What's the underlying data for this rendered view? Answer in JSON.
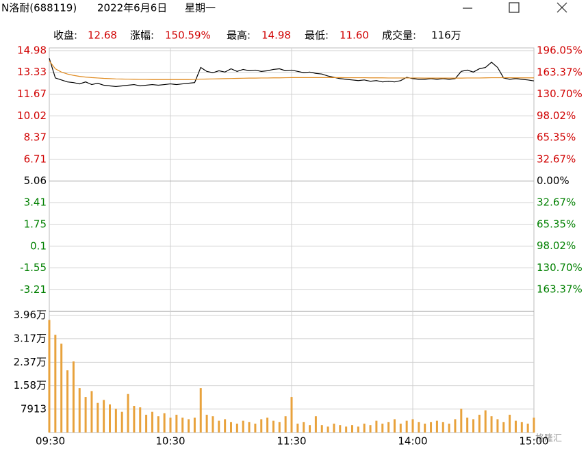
{
  "header": {
    "stock": "N洛耐(688119)",
    "date": "2022年6月6日",
    "weekday": "星期一"
  },
  "stats": [
    {
      "label": "收盘:",
      "value": "12.68"
    },
    {
      "label": "涨幅:",
      "value": "150.59%"
    },
    {
      "label": "最高:",
      "value": "14.98"
    },
    {
      "label": "最低:",
      "value": "11.60"
    },
    {
      "label": "成交量:",
      "value": "116万"
    }
  ],
  "watermark": "格隆汇",
  "chart_data": [
    {
      "type": "line",
      "categories": [
        "09:30",
        null,
        null,
        null,
        null,
        null,
        null,
        null,
        null,
        null,
        null,
        null,
        null,
        null,
        null,
        null,
        null,
        null,
        null,
        null,
        "10:30",
        null,
        null,
        null,
        null,
        null,
        null,
        null,
        null,
        null,
        null,
        null,
        null,
        null,
        null,
        null,
        null,
        null,
        null,
        null,
        "11:30",
        null,
        null,
        null,
        null,
        null,
        null,
        null,
        null,
        null,
        null,
        null,
        null,
        null,
        null,
        null,
        null,
        null,
        null,
        null,
        "14:00",
        null,
        null,
        null,
        null,
        null,
        null,
        null,
        null,
        null,
        null,
        null,
        null,
        null,
        null,
        null,
        null,
        null,
        null,
        null,
        "15:00"
      ],
      "series": [
        {
          "color": "#000000",
          "values": [
            14.4,
            12.9,
            12.75,
            12.6,
            12.55,
            12.45,
            12.6,
            12.4,
            12.5,
            12.35,
            12.3,
            12.25,
            12.3,
            12.35,
            12.4,
            12.3,
            12.35,
            12.4,
            12.35,
            12.4,
            12.45,
            12.4,
            12.45,
            12.5,
            12.55,
            13.7,
            13.4,
            13.3,
            13.45,
            13.35,
            13.6,
            13.4,
            13.55,
            13.45,
            13.5,
            13.4,
            13.45,
            13.55,
            13.6,
            13.45,
            13.5,
            13.4,
            13.3,
            13.35,
            13.25,
            13.2,
            13.05,
            12.95,
            12.85,
            12.8,
            12.75,
            12.7,
            12.75,
            12.65,
            12.7,
            12.6,
            12.65,
            12.6,
            12.7,
            12.95,
            12.85,
            12.8,
            12.8,
            12.85,
            12.8,
            12.85,
            12.8,
            12.85,
            13.4,
            13.5,
            13.35,
            13.6,
            13.7,
            14.1,
            13.7,
            12.9,
            12.8,
            12.85,
            12.8,
            12.75,
            12.68
          ]
        },
        {
          "color": "#e08a1e",
          "values": [
            14.2,
            13.6,
            13.35,
            13.2,
            13.1,
            13.02,
            12.97,
            12.93,
            12.9,
            12.87,
            12.85,
            12.83,
            12.82,
            12.81,
            12.8,
            12.79,
            12.79,
            12.78,
            12.78,
            12.78,
            12.78,
            12.78,
            12.78,
            12.78,
            12.79,
            12.81,
            12.82,
            12.83,
            12.84,
            12.85,
            12.86,
            12.87,
            12.88,
            12.89,
            12.89,
            12.9,
            12.9,
            12.91,
            12.91,
            12.92,
            12.93,
            12.93,
            12.93,
            12.93,
            12.93,
            12.93,
            12.93,
            12.93,
            12.93,
            12.92,
            12.92,
            12.92,
            12.92,
            12.91,
            12.91,
            12.91,
            12.9,
            12.9,
            12.9,
            12.9,
            12.9,
            12.9,
            12.89,
            12.89,
            12.89,
            12.89,
            12.89,
            12.89,
            12.89,
            12.9,
            12.9,
            12.9,
            12.91,
            12.92,
            12.92,
            12.92,
            12.92,
            12.91,
            12.91,
            12.91,
            12.91
          ]
        }
      ],
      "ylim": [
        -4.86,
        14.98
      ],
      "yticks": [
        14.98,
        13.33,
        11.67,
        10.02,
        8.37,
        6.71,
        5.06,
        3.41,
        1.75,
        0.1,
        -1.55,
        -3.21
      ],
      "y2lim": [
        -196.05,
        196.05
      ],
      "y2ticks": [
        {
          "value": 196.05,
          "label": "196.05%"
        },
        {
          "value": 163.37,
          "label": "163.37%"
        },
        {
          "value": 130.7,
          "label": "130.70%"
        },
        {
          "value": 98.02,
          "label": "98.02%"
        },
        {
          "value": 65.35,
          "label": "65.35%"
        },
        {
          "value": 32.67,
          "label": "32.67%"
        },
        {
          "value": 0,
          "label": "0.00%"
        },
        {
          "value": -32.67,
          "label": "32.67%"
        },
        {
          "value": -65.35,
          "label": "65.35%"
        },
        {
          "value": -98.02,
          "label": "98.02%"
        },
        {
          "value": -130.7,
          "label": "130.70%"
        },
        {
          "value": -163.37,
          "label": "163.37%"
        }
      ],
      "grid": true,
      "up_color": "#d00000",
      "down_color": "#008000",
      "flat_color": "#000000"
    },
    {
      "type": "bar",
      "color": "#e8a23c",
      "values": [
        38000,
        33000,
        30000,
        21000,
        24000,
        15000,
        12000,
        14000,
        10000,
        11000,
        9500,
        8000,
        7000,
        13000,
        9000,
        8500,
        6000,
        7000,
        5500,
        6500,
        5000,
        6000,
        5000,
        4500,
        5000,
        15000,
        6000,
        5500,
        4000,
        4500,
        3500,
        3000,
        4000,
        3500,
        3000,
        4500,
        5000,
        4000,
        3500,
        5500,
        12000,
        3000,
        3500,
        2500,
        5500,
        2500,
        2000,
        3000,
        2500,
        2000,
        2500,
        2000,
        3000,
        2500,
        4000,
        3000,
        3500,
        4500,
        3000,
        4000,
        4500,
        3500,
        3000,
        3500,
        4000,
        3500,
        3000,
        4500,
        8000,
        5000,
        4500,
        6000,
        7500,
        5500,
        4500,
        3500,
        6000,
        4000,
        3500,
        3000,
        5000
      ],
      "ylim": [
        0,
        40900
      ],
      "yticks": [
        {
          "value": 39600,
          "label": "3.96万"
        },
        {
          "value": 31700,
          "label": "3.17万"
        },
        {
          "value": 23700,
          "label": "2.37万"
        },
        {
          "value": 15800,
          "label": "1.58万"
        },
        7913
      ],
      "grid": true
    }
  ]
}
